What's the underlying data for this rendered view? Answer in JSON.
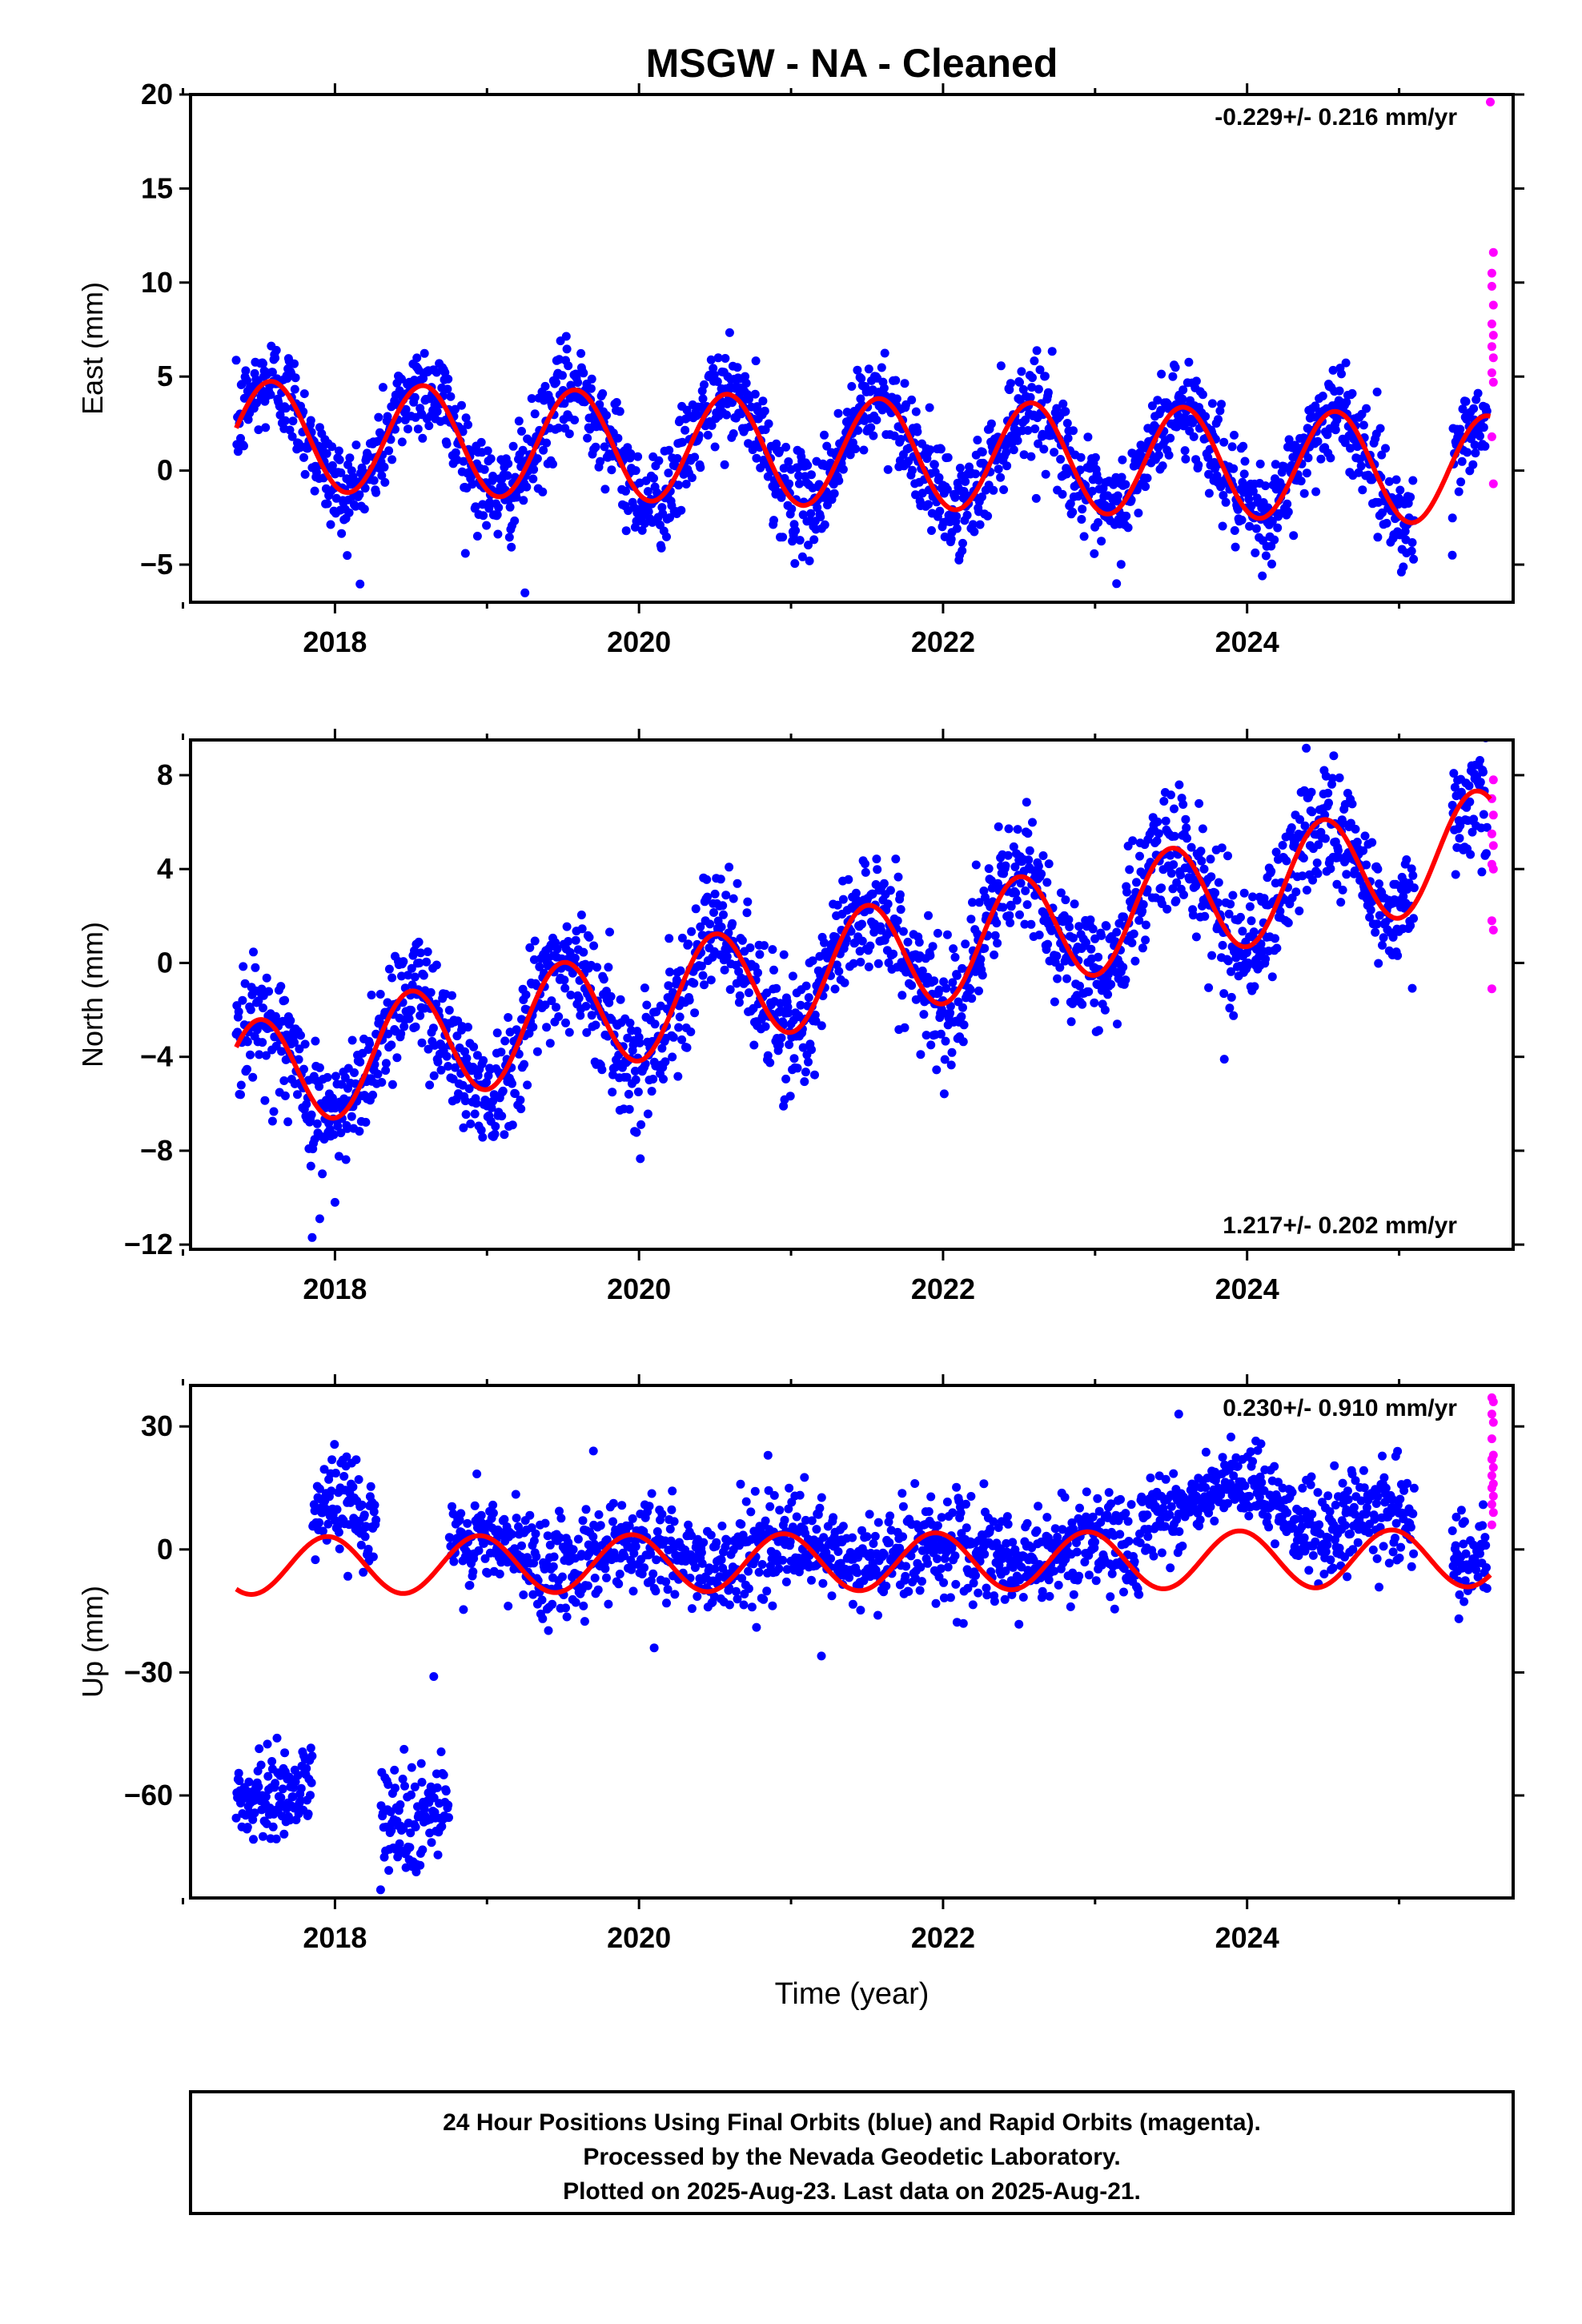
{
  "chart_data": {
    "type": "scatter",
    "title": "MSGW  - NA - Cleaned",
    "x_tick_labels": [
      "2018",
      "2020",
      "2022",
      "2024"
    ],
    "xlim": [
      2017.05,
      2025.75
    ],
    "xlabel": "Time (year)",
    "colors": {
      "final": "#0000ff",
      "rapid": "#ff00ff",
      "model": "#ff0000"
    },
    "panels": [
      {
        "name": "east",
        "ylabel": "East (mm)",
        "ylim": [
          -7,
          20
        ],
        "yticks": [
          20,
          15,
          10,
          5,
          0,
          -5
        ],
        "rate_text": "-0.229+/- 0.216 mm/yr",
        "rate_position": "top-right",
        "model": {
          "mean": 1.9,
          "trend": -0.229,
          "amp": 2.9,
          "peak": 0.58,
          "t0": 2017.35,
          "t1": 2025.6
        },
        "scatter": {
          "sigma": 1.3
        },
        "outliers": [
          [
            2019.25,
            -6.5
          ],
          [
            2024.1,
            -5.6
          ],
          [
            2025.35,
            -4.5
          ]
        ],
        "rapid_points": [
          [
            2025.6,
            19.6
          ],
          [
            2025.62,
            11.6
          ],
          [
            2025.61,
            10.5
          ],
          [
            2025.61,
            9.8
          ],
          [
            2025.62,
            8.8
          ],
          [
            2025.61,
            7.8
          ],
          [
            2025.62,
            7.2
          ],
          [
            2025.61,
            6.6
          ],
          [
            2025.62,
            6.0
          ],
          [
            2025.61,
            5.2
          ],
          [
            2025.62,
            4.7
          ],
          [
            2025.61,
            1.8
          ],
          [
            2025.62,
            -0.7
          ]
        ]
      },
      {
        "name": "north",
        "ylabel": "North (mm)",
        "ylim": [
          -12.2,
          9.5
        ],
        "yticks": [
          8,
          4,
          0,
          -4,
          -8,
          -12
        ],
        "rate_text": "1.217+/- 0.202 mm/yr",
        "rate_position": "bottom-right",
        "model": {
          "mean": -5.0,
          "trend": 1.217,
          "amp": 2.4,
          "peak": 0.5,
          "t0": 2017.35,
          "t1": 2025.6
        },
        "scatter": {
          "sigma": 1.3
        },
        "outliers": [
          [
            2017.85,
            -11.7
          ],
          [
            2017.9,
            -10.9
          ],
          [
            2018.0,
            -10.2
          ],
          [
            2020.95,
            -6.1
          ],
          [
            2023.85,
            -4.1
          ]
        ],
        "rapid_points": [
          [
            2025.62,
            7.8
          ],
          [
            2025.61,
            7.0
          ],
          [
            2025.62,
            6.3
          ],
          [
            2025.61,
            5.5
          ],
          [
            2025.62,
            5.0
          ],
          [
            2025.61,
            4.2
          ],
          [
            2025.62,
            4.0
          ],
          [
            2025.61,
            1.8
          ],
          [
            2025.62,
            1.4
          ],
          [
            2025.61,
            -1.1
          ]
        ]
      },
      {
        "name": "up",
        "ylabel": "Up (mm)",
        "ylim": [
          -85,
          40
        ],
        "yticks": [
          30,
          0,
          -30,
          -60
        ],
        "rate_text": "0.230+/- 0.910 mm/yr",
        "rate_position": "top-right",
        "model": {
          "mean": -4.0,
          "trend": 0.23,
          "amp": 7.0,
          "peak": 0.95,
          "t0": 2017.35,
          "t1": 2025.6
        },
        "scatter": {
          "sigma": 5.5
        },
        "groups": [
          {
            "from": 2017.35,
            "to": 2017.85,
            "mean": -59,
            "sigma": 5
          },
          {
            "from": 2017.85,
            "to": 2018.27,
            "mean": 9,
            "sigma": 6
          },
          {
            "from": 2018.3,
            "to": 2018.75,
            "mean": -63,
            "sigma": 7
          },
          {
            "from": 2018.75,
            "to": 2023.3,
            "mean": -1,
            "sigma": 6
          },
          {
            "from": 2023.3,
            "to": 2024.3,
            "mean": 12,
            "sigma": 5
          },
          {
            "from": 2024.3,
            "to": 2025.1,
            "mean": 7,
            "sigma": 6
          },
          {
            "from": 2025.35,
            "to": 2025.6,
            "mean": -1,
            "sigma": 5
          }
        ],
        "outliers": [
          [
            2018.3,
            -83
          ],
          [
            2018.65,
            -31
          ],
          [
            2019.7,
            24
          ],
          [
            2020.1,
            -24
          ],
          [
            2021.2,
            -26
          ],
          [
            2023.55,
            33
          ]
        ],
        "rapid_points": [
          [
            2025.61,
            37
          ],
          [
            2025.62,
            36
          ],
          [
            2025.61,
            33
          ],
          [
            2025.62,
            31
          ],
          [
            2025.61,
            27
          ],
          [
            2025.62,
            23
          ],
          [
            2025.61,
            22
          ],
          [
            2025.62,
            20
          ],
          [
            2025.61,
            18
          ],
          [
            2025.62,
            16
          ],
          [
            2025.61,
            15
          ],
          [
            2025.62,
            13
          ],
          [
            2025.61,
            11
          ],
          [
            2025.62,
            9
          ],
          [
            2025.61,
            6
          ]
        ]
      }
    ],
    "footer_lines": [
      "24 Hour Positions Using Final Orbits (blue) and Rapid Orbits (magenta).",
      "Processed by the Nevada Geodetic Laboratory.",
      "Plotted on 2025-Aug-23. Last data on 2025-Aug-21."
    ]
  }
}
